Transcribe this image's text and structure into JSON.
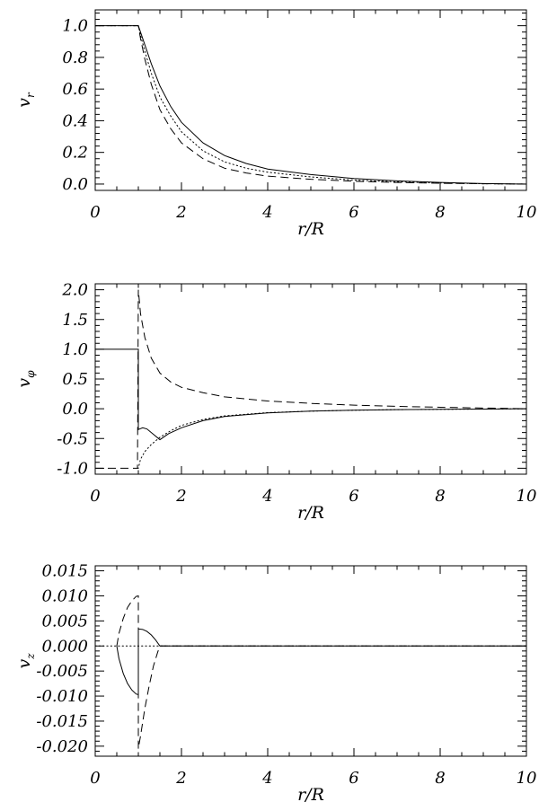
{
  "chart_data": [
    {
      "type": "line",
      "xlabel": "r/R",
      "ylabel": "v_r",
      "ylabel_main": "v",
      "ylabel_sub": "r",
      "xlim": [
        0,
        10
      ],
      "ylim": [
        -0.04,
        1.1
      ],
      "x_ticks": [
        "0",
        "2",
        "4",
        "6",
        "8",
        "10"
      ],
      "y_ticks": [
        {
          "value": 0.0,
          "label": "0.0"
        },
        {
          "value": 0.2,
          "label": "0.2"
        },
        {
          "value": 0.4,
          "label": "0.4"
        },
        {
          "value": 0.6,
          "label": "0.6"
        },
        {
          "value": 0.8,
          "label": "0.8"
        },
        {
          "value": 1.0,
          "label": "1.0"
        }
      ],
      "series": [
        {
          "style": "solid",
          "points": [
            [
              0,
              1.0
            ],
            [
              1.0,
              1.0
            ],
            [
              1.05,
              0.96
            ],
            [
              1.15,
              0.88
            ],
            [
              1.3,
              0.76
            ],
            [
              1.5,
              0.62
            ],
            [
              1.75,
              0.49
            ],
            [
              2.0,
              0.39
            ],
            [
              2.5,
              0.26
            ],
            [
              3.0,
              0.18
            ],
            [
              3.5,
              0.13
            ],
            [
              4.0,
              0.095
            ],
            [
              5.0,
              0.06
            ],
            [
              6.0,
              0.035
            ],
            [
              7.0,
              0.02
            ],
            [
              8.0,
              0.01
            ],
            [
              9.0,
              0.003
            ],
            [
              10.0,
              0.0
            ]
          ]
        },
        {
          "style": "dotted",
          "points": [
            [
              0,
              1.0
            ],
            [
              1.0,
              1.0
            ],
            [
              1.05,
              0.94
            ],
            [
              1.15,
              0.84
            ],
            [
              1.3,
              0.7
            ],
            [
              1.5,
              0.55
            ],
            [
              1.75,
              0.43
            ],
            [
              2.0,
              0.33
            ],
            [
              2.5,
              0.21
            ],
            [
              3.0,
              0.14
            ],
            [
              3.5,
              0.1
            ],
            [
              4.0,
              0.075
            ],
            [
              5.0,
              0.045
            ],
            [
              6.0,
              0.025
            ],
            [
              7.0,
              0.014
            ],
            [
              8.0,
              0.007
            ],
            [
              9.0,
              0.002
            ],
            [
              10.0,
              0.0
            ]
          ]
        },
        {
          "style": "dashed",
          "points": [
            [
              0,
              1.0
            ],
            [
              1.0,
              1.0
            ],
            [
              1.05,
              0.92
            ],
            [
              1.15,
              0.79
            ],
            [
              1.3,
              0.63
            ],
            [
              1.5,
              0.47
            ],
            [
              1.75,
              0.35
            ],
            [
              2.0,
              0.26
            ],
            [
              2.5,
              0.16
            ],
            [
              3.0,
              0.1
            ],
            [
              3.5,
              0.07
            ],
            [
              4.0,
              0.05
            ],
            [
              5.0,
              0.03
            ],
            [
              6.0,
              0.018
            ],
            [
              7.0,
              0.01
            ],
            [
              8.0,
              0.005
            ],
            [
              9.0,
              0.002
            ],
            [
              10.0,
              0.0
            ]
          ]
        }
      ]
    },
    {
      "type": "line",
      "xlabel": "r/R",
      "ylabel": "v_φ",
      "ylabel_main": "v",
      "ylabel_sub": "φ",
      "xlim": [
        0,
        10
      ],
      "ylim": [
        -1.1,
        2.1
      ],
      "x_ticks": [
        "0",
        "2",
        "4",
        "6",
        "8",
        "10"
      ],
      "y_ticks": [
        {
          "value": -1.0,
          "label": "-1.0"
        },
        {
          "value": -0.5,
          "label": "-0.5"
        },
        {
          "value": 0.0,
          "label": "0.0"
        },
        {
          "value": 0.5,
          "label": "0.5"
        },
        {
          "value": 1.0,
          "label": "1.0"
        },
        {
          "value": 1.5,
          "label": "1.5"
        },
        {
          "value": 2.0,
          "label": "2.0"
        }
      ],
      "series": [
        {
          "style": "solid",
          "points": [
            [
              0,
              1.0
            ],
            [
              1.0,
              1.0
            ],
            [
              1.0,
              -0.35
            ],
            [
              1.1,
              -0.32
            ],
            [
              1.2,
              -0.34
            ],
            [
              1.35,
              -0.43
            ],
            [
              1.5,
              -0.52
            ],
            [
              1.7,
              -0.42
            ],
            [
              2.0,
              -0.32
            ],
            [
              2.5,
              -0.2
            ],
            [
              3.0,
              -0.13
            ],
            [
              4.0,
              -0.07
            ],
            [
              5.0,
              -0.04
            ],
            [
              6.0,
              -0.025
            ],
            [
              7.0,
              -0.015
            ],
            [
              8.0,
              -0.01
            ],
            [
              9.0,
              -0.005
            ],
            [
              10.0,
              0.0
            ]
          ]
        },
        {
          "style": "dotted",
          "points": [
            [
              0.98,
              -1.0
            ],
            [
              1.0,
              -1.0
            ],
            [
              1.05,
              -0.85
            ],
            [
              1.15,
              -0.72
            ],
            [
              1.3,
              -0.6
            ],
            [
              1.5,
              -0.48
            ],
            [
              1.75,
              -0.37
            ],
            [
              2.0,
              -0.28
            ],
            [
              2.5,
              -0.18
            ],
            [
              3.0,
              -0.12
            ],
            [
              4.0,
              -0.065
            ],
            [
              5.0,
              -0.04
            ],
            [
              6.0,
              -0.025
            ],
            [
              7.0,
              -0.015
            ],
            [
              8.0,
              -0.01
            ],
            [
              9.0,
              -0.005
            ],
            [
              10.0,
              0.0
            ]
          ]
        },
        {
          "style": "dashed",
          "points": [
            [
              0,
              -1.0
            ],
            [
              0.98,
              -1.0
            ],
            [
              1.0,
              2.0
            ],
            [
              1.05,
              1.6
            ],
            [
              1.15,
              1.2
            ],
            [
              1.3,
              0.85
            ],
            [
              1.5,
              0.6
            ],
            [
              1.75,
              0.45
            ],
            [
              2.0,
              0.36
            ],
            [
              2.5,
              0.27
            ],
            [
              3.0,
              0.2
            ],
            [
              4.0,
              0.13
            ],
            [
              5.0,
              0.09
            ],
            [
              6.0,
              0.06
            ],
            [
              7.0,
              0.04
            ],
            [
              8.0,
              0.025
            ],
            [
              9.0,
              0.012
            ],
            [
              10.0,
              0.0
            ]
          ]
        }
      ]
    },
    {
      "type": "line",
      "xlabel": "r/R",
      "ylabel": "v_z",
      "ylabel_main": "v",
      "ylabel_sub": "z",
      "xlim": [
        0,
        10
      ],
      "ylim": [
        -0.022,
        0.016
      ],
      "x_ticks": [
        "0",
        "2",
        "4",
        "6",
        "8",
        "10"
      ],
      "y_ticks": [
        {
          "value": -0.02,
          "label": "-0.020"
        },
        {
          "value": -0.015,
          "label": "-0.015"
        },
        {
          "value": -0.01,
          "label": "-0.010"
        },
        {
          "value": -0.005,
          "label": "-0.005"
        },
        {
          "value": 0.0,
          "label": "0.000"
        },
        {
          "value": 0.005,
          "label": "0.005"
        },
        {
          "value": 0.01,
          "label": "0.010"
        },
        {
          "value": 0.015,
          "label": "0.015"
        }
      ],
      "series": [
        {
          "style": "solid",
          "points": [
            [
              0.5,
              0.0
            ],
            [
              0.55,
              -0.0025
            ],
            [
              0.65,
              -0.0055
            ],
            [
              0.75,
              -0.0075
            ],
            [
              0.85,
              -0.0088
            ],
            [
              0.95,
              -0.0096
            ],
            [
              1.0,
              -0.0097
            ],
            [
              1.0,
              0.0034
            ],
            [
              1.1,
              0.0033
            ],
            [
              1.2,
              0.0029
            ],
            [
              1.3,
              0.0022
            ],
            [
              1.4,
              0.0012
            ],
            [
              1.5,
              0.0
            ],
            [
              10.0,
              0.0
            ]
          ]
        },
        {
          "style": "dashed",
          "points": [
            [
              0.5,
              0.0
            ],
            [
              0.55,
              0.0025
            ],
            [
              0.65,
              0.0055
            ],
            [
              0.75,
              0.0077
            ],
            [
              0.85,
              0.009
            ],
            [
              0.95,
              0.0099
            ],
            [
              1.0,
              0.01
            ],
            [
              1.0,
              -0.0205
            ],
            [
              1.05,
              -0.018
            ],
            [
              1.15,
              -0.0125
            ],
            [
              1.25,
              -0.008
            ],
            [
              1.35,
              -0.004
            ],
            [
              1.45,
              -0.0012
            ],
            [
              1.5,
              0.0
            ],
            [
              10.0,
              0.0
            ]
          ]
        },
        {
          "style": "dotted",
          "points": [
            [
              0,
              0.0
            ],
            [
              10.0,
              0.0
            ]
          ]
        }
      ]
    }
  ]
}
